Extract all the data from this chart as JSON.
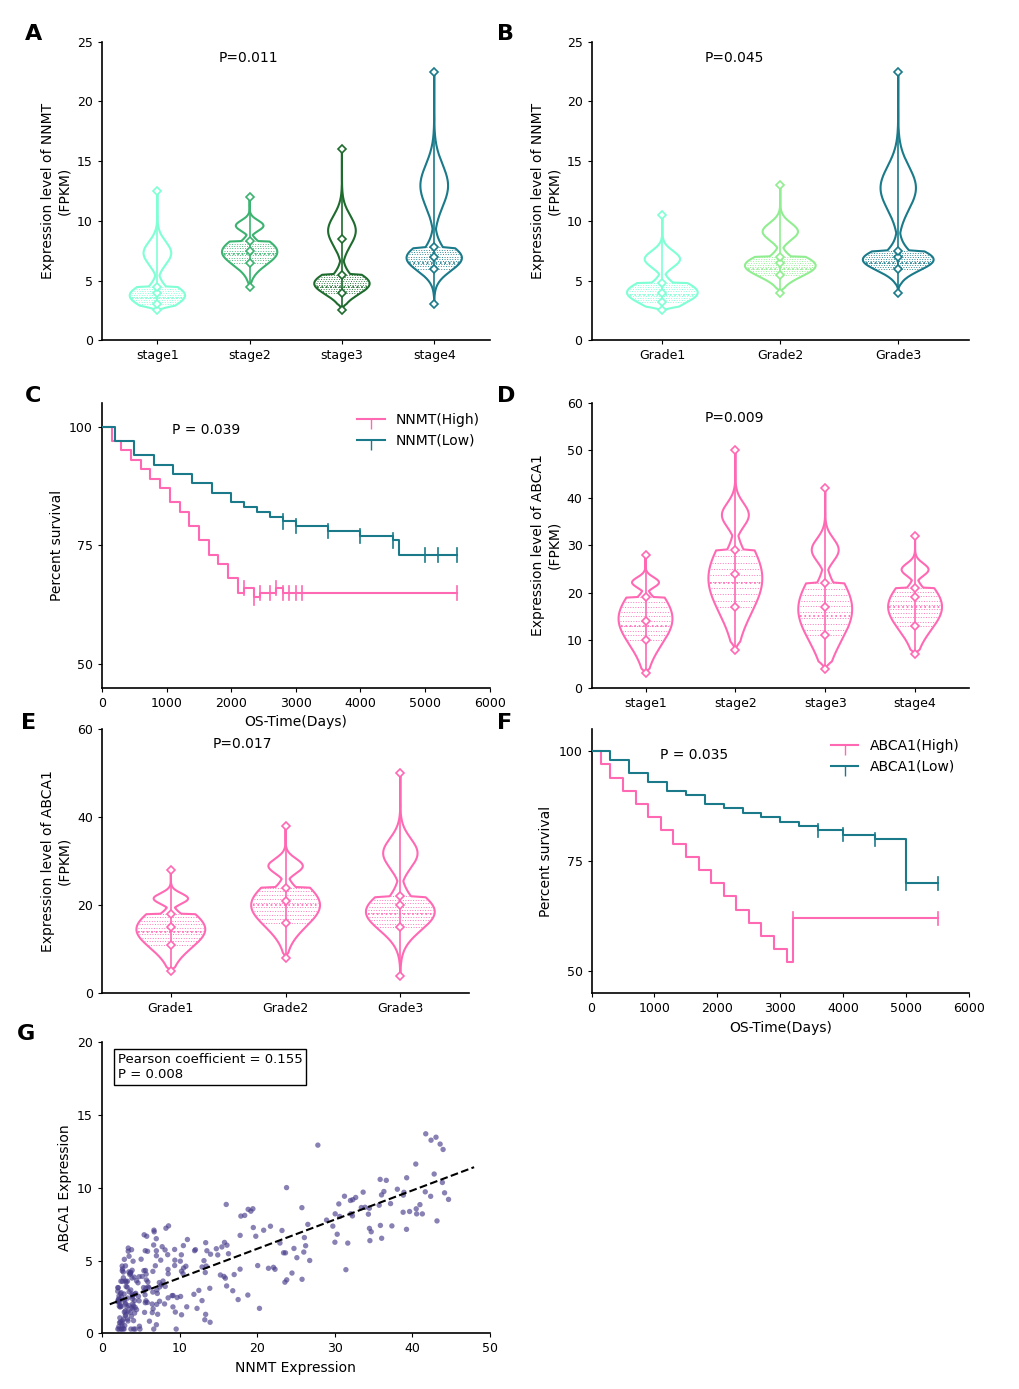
{
  "panel_A": {
    "title": "A",
    "pval": "P=0.011",
    "ylabel": "Expression level of NNMT\n(FPKM)",
    "xlabels": [
      "stage1",
      "stage2",
      "stage3",
      "stage4"
    ],
    "ylim": [
      0,
      25
    ],
    "yticks": [
      0,
      5,
      10,
      15,
      20,
      25
    ],
    "colors": [
      "#7FFFD4",
      "#3CB371",
      "#1E6B2E",
      "#1A7A8A"
    ],
    "violin_data": {
      "stage1": {
        "median": 3.5,
        "q1": 3.0,
        "q3": 4.5,
        "whisker_lo": 2.5,
        "whisker_hi": 12.5,
        "mean": 4.0,
        "bulge_lo": 3.0,
        "bulge_hi": 4.5,
        "neck1": 2.8,
        "neck2": 4.8,
        "top_bulge": 8.0,
        "top_bulge_hi": 12.5
      },
      "stage2": {
        "median": 7.2,
        "q1": 6.5,
        "q3": 8.3,
        "whisker_lo": 4.5,
        "whisker_hi": 12.0,
        "mean": 7.5,
        "bulge_lo": 6.0,
        "bulge_hi": 9.0,
        "neck1": 5.5,
        "neck2": 9.5,
        "top_bulge": 11.0,
        "top_bulge_hi": 12.0
      },
      "stage3": {
        "median": 4.5,
        "q1": 4.0,
        "q3": 5.5,
        "whisker_lo": 2.5,
        "whisker_hi": 16.0,
        "mean": 8.5,
        "bulge_lo": 3.8,
        "bulge_hi": 5.8,
        "neck1": 3.5,
        "neck2": 6.2,
        "top_bulge": 14.0,
        "top_bulge_hi": 16.0
      },
      "stage4": {
        "median": 6.5,
        "q1": 6.0,
        "q3": 7.8,
        "whisker_lo": 3.0,
        "whisker_hi": 22.5,
        "mean": 7.0,
        "bulge_lo": 5.5,
        "bulge_hi": 8.5,
        "neck1": 5.0,
        "neck2": 9.0,
        "top_bulge": 10.0,
        "top_bulge_hi": 22.5
      }
    }
  },
  "panel_B": {
    "title": "B",
    "pval": "P=0.045",
    "ylabel": "Expression level of NNMT\n(FPKM)",
    "xlabels": [
      "Grade1",
      "Grade2",
      "Grade3"
    ],
    "ylim": [
      0,
      25
    ],
    "yticks": [
      0,
      5,
      10,
      15,
      20,
      25
    ],
    "colors": [
      "#7FFFD4",
      "#90EE90",
      "#1A7A8A"
    ],
    "violin_data": {
      "Grade1": {
        "median": 3.8,
        "q1": 3.2,
        "q3": 4.8,
        "whisker_lo": 2.5,
        "whisker_hi": 10.5,
        "mean": 4.0,
        "bulge_lo": 3.0,
        "bulge_hi": 4.8,
        "neck1": 2.8,
        "neck2": 5.2,
        "top_bulge": 7.5,
        "top_bulge_hi": 10.5
      },
      "Grade2": {
        "median": 6.0,
        "q1": 5.5,
        "q3": 7.0,
        "whisker_lo": 4.0,
        "whisker_hi": 13.0,
        "mean": 6.5,
        "bulge_lo": 5.0,
        "bulge_hi": 7.5,
        "neck1": 4.5,
        "neck2": 8.0,
        "top_bulge": 11.5,
        "top_bulge_hi": 13.0
      },
      "Grade3": {
        "median": 6.5,
        "q1": 6.0,
        "q3": 7.5,
        "whisker_lo": 4.0,
        "whisker_hi": 22.5,
        "mean": 7.0,
        "bulge_lo": 5.5,
        "bulge_hi": 8.5,
        "neck1": 5.0,
        "neck2": 9.0,
        "top_bulge": 12.0,
        "top_bulge_hi": 22.5
      }
    }
  },
  "panel_C": {
    "title": "C",
    "pval": "P = 0.039",
    "ylabel": "Percent survival",
    "xlabel": "OS-Time(Days)",
    "ylim": [
      45,
      105
    ],
    "xlim": [
      0,
      6000
    ],
    "yticks": [
      50,
      75,
      100
    ],
    "xticks": [
      0,
      1000,
      2000,
      3000,
      4000,
      5000,
      6000
    ],
    "high_color": "#FF69B4",
    "low_color": "#1A7A8A",
    "high_times": [
      0,
      150,
      300,
      450,
      600,
      750,
      900,
      1050,
      1200,
      1350,
      1500,
      1650,
      1800,
      1950,
      2100,
      2200,
      2350,
      2450,
      2600,
      2700,
      2800,
      2900,
      2950,
      3000,
      3050,
      3100,
      5500
    ],
    "high_surv": [
      100,
      97,
      95,
      93,
      91,
      89,
      87,
      84,
      82,
      79,
      76,
      73,
      71,
      68,
      65,
      66,
      64,
      65,
      65,
      66,
      65,
      65,
      65,
      65,
      65,
      65,
      65
    ],
    "low_times": [
      0,
      200,
      500,
      800,
      1100,
      1400,
      1700,
      2000,
      2200,
      2400,
      2600,
      2800,
      3000,
      3500,
      4000,
      4500,
      4600,
      5000,
      5200,
      5500
    ],
    "low_surv": [
      100,
      97,
      94,
      92,
      90,
      88,
      86,
      84,
      83,
      82,
      81,
      80,
      79,
      78,
      77,
      76,
      73,
      73,
      73,
      73
    ],
    "high_censor": [
      2200,
      2350,
      2450,
      2600,
      2700,
      2800,
      2900,
      3000,
      3100,
      5500
    ],
    "low_censor": [
      2800,
      3000,
      3500,
      4000,
      4500,
      5000,
      5200,
      5500
    ]
  },
  "panel_D": {
    "title": "D",
    "pval": "P=0.009",
    "ylabel": "Expression level of ABCA1\n(FPKM)",
    "xlabels": [
      "stage1",
      "stage2",
      "stage3",
      "stage4"
    ],
    "ylim": [
      0,
      60
    ],
    "yticks": [
      0,
      10,
      20,
      30,
      40,
      50,
      60
    ],
    "colors": [
      "#FF69B4",
      "#FF69B4",
      "#FF69B4",
      "#FF69B4"
    ],
    "violin_data": {
      "stage1": {
        "median": 13.0,
        "q1": 10.0,
        "q3": 19.0,
        "whisker_lo": 3.0,
        "whisker_hi": 28.0,
        "mean": 14.0,
        "bulge_lo": 9.0,
        "bulge_hi": 20.0,
        "neck1": 8.0,
        "neck2": 21.0,
        "top_bulge": 25.0,
        "top_bulge_hi": 28.0
      },
      "stage2": {
        "median": 22.0,
        "q1": 17.0,
        "q3": 29.0,
        "whisker_lo": 8.0,
        "whisker_hi": 50.0,
        "mean": 24.0,
        "bulge_lo": 16.0,
        "bulge_hi": 30.0,
        "neck1": 14.0,
        "neck2": 32.0,
        "top_bulge": 38.0,
        "top_bulge_hi": 50.0
      },
      "stage3": {
        "median": 15.0,
        "q1": 11.0,
        "q3": 22.0,
        "whisker_lo": 4.0,
        "whisker_hi": 42.0,
        "mean": 17.0,
        "bulge_lo": 10.0,
        "bulge_hi": 23.0,
        "neck1": 8.0,
        "neck2": 25.0,
        "top_bulge": 30.0,
        "top_bulge_hi": 42.0
      },
      "stage4": {
        "median": 17.0,
        "q1": 13.0,
        "q3": 21.0,
        "whisker_lo": 7.0,
        "whisker_hi": 32.0,
        "mean": 19.0,
        "bulge_lo": 12.0,
        "bulge_hi": 22.0,
        "neck1": 10.0,
        "neck2": 24.0,
        "top_bulge": 27.0,
        "top_bulge_hi": 32.0
      }
    }
  },
  "panel_E": {
    "title": "E",
    "pval": "P=0.017",
    "ylabel": "Expression level of ABCA1\n(FPKM)",
    "xlabels": [
      "Grade1",
      "Grade2",
      "Grade3"
    ],
    "ylim": [
      0,
      60
    ],
    "yticks": [
      0,
      20,
      40,
      60
    ],
    "colors": [
      "#FF69B4",
      "#FF69B4",
      "#FF69B4"
    ],
    "violin_data": {
      "Grade1": {
        "median": 14.0,
        "q1": 11.0,
        "q3": 18.0,
        "whisker_lo": 5.0,
        "whisker_hi": 28.0,
        "mean": 15.0,
        "bulge_lo": 10.0,
        "bulge_hi": 19.0,
        "neck1": 9.0,
        "neck2": 20.0,
        "top_bulge": 23.0,
        "top_bulge_hi": 28.0
      },
      "Grade2": {
        "median": 20.0,
        "q1": 16.0,
        "q3": 24.0,
        "whisker_lo": 8.0,
        "whisker_hi": 38.0,
        "mean": 21.0,
        "bulge_lo": 15.0,
        "bulge_hi": 25.0,
        "neck1": 13.0,
        "neck2": 27.0,
        "top_bulge": 32.0,
        "top_bulge_hi": 38.0
      },
      "Grade3": {
        "median": 18.0,
        "q1": 15.0,
        "q3": 22.0,
        "whisker_lo": 4.0,
        "whisker_hi": 50.0,
        "mean": 20.0,
        "bulge_lo": 14.0,
        "bulge_hi": 23.0,
        "neck1": 12.0,
        "neck2": 25.0,
        "top_bulge": 35.0,
        "top_bulge_hi": 50.0
      }
    }
  },
  "panel_F": {
    "title": "F",
    "pval": "P = 0.035",
    "ylabel": "Percent survival",
    "xlabel": "OS-Time(Days)",
    "ylim": [
      45,
      105
    ],
    "xlim": [
      0,
      6000
    ],
    "yticks": [
      50,
      75,
      100
    ],
    "xticks": [
      0,
      1000,
      2000,
      3000,
      4000,
      5000,
      6000
    ],
    "high_color": "#FF69B4",
    "low_color": "#1A7A8A",
    "high_times": [
      0,
      150,
      300,
      500,
      700,
      900,
      1100,
      1300,
      1500,
      1700,
      1900,
      2100,
      2300,
      2500,
      2700,
      2900,
      3100,
      3200,
      5500
    ],
    "high_surv": [
      100,
      97,
      94,
      91,
      88,
      85,
      82,
      79,
      76,
      73,
      70,
      67,
      64,
      61,
      58,
      55,
      52,
      62,
      62
    ],
    "low_times": [
      0,
      300,
      600,
      900,
      1200,
      1500,
      1800,
      2100,
      2400,
      2700,
      3000,
      3300,
      3600,
      4000,
      4500,
      5000,
      5500
    ],
    "low_surv": [
      100,
      98,
      95,
      93,
      91,
      90,
      88,
      87,
      86,
      85,
      84,
      83,
      82,
      81,
      80,
      70,
      70
    ],
    "high_censor": [
      3200,
      5500
    ],
    "low_censor": [
      3600,
      4000,
      4500,
      5000,
      5500
    ]
  },
  "panel_G": {
    "title": "G",
    "annotation": "Pearson coefficient = 0.155\nP = 0.008",
    "xlabel": "NNMT Expression",
    "ylabel": "ABCA1 Expression",
    "xlim": [
      0,
      50
    ],
    "ylim": [
      0,
      20
    ],
    "xticks": [
      0,
      10,
      20,
      30,
      40,
      50
    ],
    "yticks": [
      0,
      5,
      10,
      15,
      20
    ],
    "dot_color": "#483D8B",
    "line_color": "black",
    "slope": 0.2,
    "intercept": 1.8,
    "n_points": 300
  },
  "bg_color": "#FFFFFF",
  "label_fontsize": 10,
  "tick_fontsize": 9,
  "title_letter_fontsize": 16
}
